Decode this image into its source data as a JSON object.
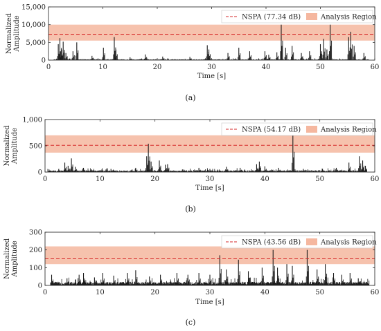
{
  "figure": {
    "panels": [
      {
        "caption": "(a)"
      },
      {
        "caption": "(b)"
      },
      {
        "caption": "(c)"
      }
    ]
  },
  "colors": {
    "signal": "#1a1a1a",
    "nspa_line": "#d62728",
    "analysis_region": "#f5b79f",
    "axis": "#333333"
  },
  "chart_data": [
    {
      "type": "line",
      "xlabel": "Time [s]",
      "ylabel": "Normalized Amplitude",
      "xlim": [
        0,
        60
      ],
      "ylim": [
        0,
        15000
      ],
      "x_ticks": [
        0,
        10,
        20,
        30,
        40,
        50,
        60
      ],
      "x_tick_labels": [
        "0",
        "10",
        "20",
        "30",
        "40",
        "50",
        "60"
      ],
      "y_ticks": [
        0,
        5000,
        10000,
        15000
      ],
      "y_tick_labels": [
        "0",
        "5,000",
        "10,000",
        "15,000"
      ],
      "nspa": {
        "label": "NSPA (77.34 dB)",
        "value": 7300
      },
      "analysis_region": {
        "label": "Analysis Region",
        "range": [
          5500,
          10000
        ]
      },
      "legend_position": "top-right",
      "series": [
        {
          "x_start": 1,
          "x_end": 59,
          "baseline": 150,
          "peaks": [
            {
              "x": 1.8,
              "y": 4500
            },
            {
              "x": 2.1,
              "y": 6200
            },
            {
              "x": 2.4,
              "y": 3000
            },
            {
              "x": 2.7,
              "y": 5200
            },
            {
              "x": 3.2,
              "y": 2000
            },
            {
              "x": 4.5,
              "y": 2500
            },
            {
              "x": 5.2,
              "y": 5000
            },
            {
              "x": 8.0,
              "y": 1200
            },
            {
              "x": 10.1,
              "y": 3500
            },
            {
              "x": 12.1,
              "y": 6500
            },
            {
              "x": 12.4,
              "y": 3000
            },
            {
              "x": 15.0,
              "y": 800
            },
            {
              "x": 17.8,
              "y": 1600
            },
            {
              "x": 21.0,
              "y": 1000
            },
            {
              "x": 26.0,
              "y": 900
            },
            {
              "x": 29.2,
              "y": 4200
            },
            {
              "x": 29.5,
              "y": 3000
            },
            {
              "x": 33.0,
              "y": 2000
            },
            {
              "x": 35.0,
              "y": 3500
            },
            {
              "x": 37.0,
              "y": 2500
            },
            {
              "x": 39.8,
              "y": 2500
            },
            {
              "x": 40.5,
              "y": 1500
            },
            {
              "x": 42.0,
              "y": 2200
            },
            {
              "x": 42.8,
              "y": 10000
            },
            {
              "x": 43.6,
              "y": 3500
            },
            {
              "x": 44.8,
              "y": 4000
            },
            {
              "x": 46.5,
              "y": 2000
            },
            {
              "x": 48.0,
              "y": 2500
            },
            {
              "x": 50.0,
              "y": 4500
            },
            {
              "x": 50.6,
              "y": 6000
            },
            {
              "x": 51.2,
              "y": 3000
            },
            {
              "x": 51.8,
              "y": 10000
            },
            {
              "x": 55.2,
              "y": 6500
            },
            {
              "x": 55.6,
              "y": 8000
            },
            {
              "x": 56.2,
              "y": 4000
            },
            {
              "x": 58.0,
              "y": 2000
            }
          ]
        }
      ]
    },
    {
      "type": "line",
      "xlabel": "Time [s]",
      "ylabel": "Normalized Amplitude",
      "xlim": [
        0,
        60
      ],
      "ylim": [
        0,
        1000
      ],
      "x_ticks": [
        0,
        10,
        20,
        30,
        40,
        50,
        60
      ],
      "x_tick_labels": [
        "0",
        "10",
        "20",
        "30",
        "40",
        "50",
        "60"
      ],
      "y_ticks": [
        0,
        500,
        1000
      ],
      "y_tick_labels": [
        "0",
        "500",
        "1,000"
      ],
      "nspa": {
        "label": "NSPA (54.17 dB)",
        "value": 510
      },
      "analysis_region": {
        "label": "Analysis Region",
        "range": [
          370,
          700
        ]
      },
      "legend_position": "top-right",
      "series": [
        {
          "x_start": 0.5,
          "x_end": 58.5,
          "baseline": 20,
          "peaks": [
            {
              "x": 2.5,
              "y": 60
            },
            {
              "x": 3.6,
              "y": 180
            },
            {
              "x": 4.2,
              "y": 120
            },
            {
              "x": 4.8,
              "y": 260
            },
            {
              "x": 5.5,
              "y": 100
            },
            {
              "x": 7.0,
              "y": 80
            },
            {
              "x": 8.5,
              "y": 50
            },
            {
              "x": 12.0,
              "y": 60
            },
            {
              "x": 16.5,
              "y": 80
            },
            {
              "x": 18.5,
              "y": 300
            },
            {
              "x": 18.8,
              "y": 540
            },
            {
              "x": 19.3,
              "y": 200
            },
            {
              "x": 20.8,
              "y": 220
            },
            {
              "x": 21.9,
              "y": 140
            },
            {
              "x": 22.3,
              "y": 150
            },
            {
              "x": 25.0,
              "y": 50
            },
            {
              "x": 28.0,
              "y": 80
            },
            {
              "x": 30.0,
              "y": 60
            },
            {
              "x": 33.0,
              "y": 100
            },
            {
              "x": 35.5,
              "y": 80
            },
            {
              "x": 38.5,
              "y": 150
            },
            {
              "x": 39.0,
              "y": 200
            },
            {
              "x": 40.0,
              "y": 110
            },
            {
              "x": 42.5,
              "y": 80
            },
            {
              "x": 45.1,
              "y": 700
            },
            {
              "x": 47.0,
              "y": 60
            },
            {
              "x": 50.5,
              "y": 60
            },
            {
              "x": 53.0,
              "y": 80
            },
            {
              "x": 55.3,
              "y": 180
            },
            {
              "x": 57.2,
              "y": 300
            },
            {
              "x": 57.8,
              "y": 220
            },
            {
              "x": 58.3,
              "y": 120
            }
          ]
        }
      ]
    },
    {
      "type": "line",
      "xlabel": "Time [s]",
      "ylabel": "Normalized Amplitude",
      "xlim": [
        0,
        60
      ],
      "ylim": [
        0,
        300
      ],
      "x_ticks": [
        0,
        10,
        20,
        30,
        40,
        50,
        60
      ],
      "x_tick_labels": [
        "0",
        "10",
        "20",
        "30",
        "40",
        "50",
        "60"
      ],
      "y_ticks": [
        0,
        100,
        200,
        300
      ],
      "y_tick_labels": [
        "0",
        "100",
        "200",
        "300"
      ],
      "nspa": {
        "label": "NSPA (43.56 dB)",
        "value": 150
      },
      "analysis_region": {
        "label": "Analysis Region",
        "range": [
          120,
          220
        ]
      },
      "legend_position": "top-right",
      "series": [
        {
          "x_start": 1,
          "x_end": 59,
          "baseline": 12,
          "peaks": [
            {
              "x": 1.2,
              "y": 60
            },
            {
              "x": 4.0,
              "y": 40
            },
            {
              "x": 6.2,
              "y": 60
            },
            {
              "x": 7.0,
              "y": 70
            },
            {
              "x": 9.0,
              "y": 45
            },
            {
              "x": 10.5,
              "y": 70
            },
            {
              "x": 12.5,
              "y": 55
            },
            {
              "x": 15.0,
              "y": 70
            },
            {
              "x": 16.5,
              "y": 85
            },
            {
              "x": 19.0,
              "y": 50
            },
            {
              "x": 21.0,
              "y": 60
            },
            {
              "x": 24.0,
              "y": 70
            },
            {
              "x": 26.0,
              "y": 60
            },
            {
              "x": 28.0,
              "y": 70
            },
            {
              "x": 30.0,
              "y": 60
            },
            {
              "x": 31.8,
              "y": 170
            },
            {
              "x": 33.0,
              "y": 90
            },
            {
              "x": 35.2,
              "y": 145
            },
            {
              "x": 37.0,
              "y": 80
            },
            {
              "x": 39.5,
              "y": 100
            },
            {
              "x": 41.5,
              "y": 200
            },
            {
              "x": 42.3,
              "y": 100
            },
            {
              "x": 44.0,
              "y": 120
            },
            {
              "x": 45.0,
              "y": 110
            },
            {
              "x": 47.7,
              "y": 200
            },
            {
              "x": 49.5,
              "y": 90
            },
            {
              "x": 51.0,
              "y": 120
            },
            {
              "x": 52.5,
              "y": 70
            },
            {
              "x": 54.0,
              "y": 60
            },
            {
              "x": 55.5,
              "y": 70
            },
            {
              "x": 57.0,
              "y": 40
            }
          ]
        }
      ]
    }
  ]
}
